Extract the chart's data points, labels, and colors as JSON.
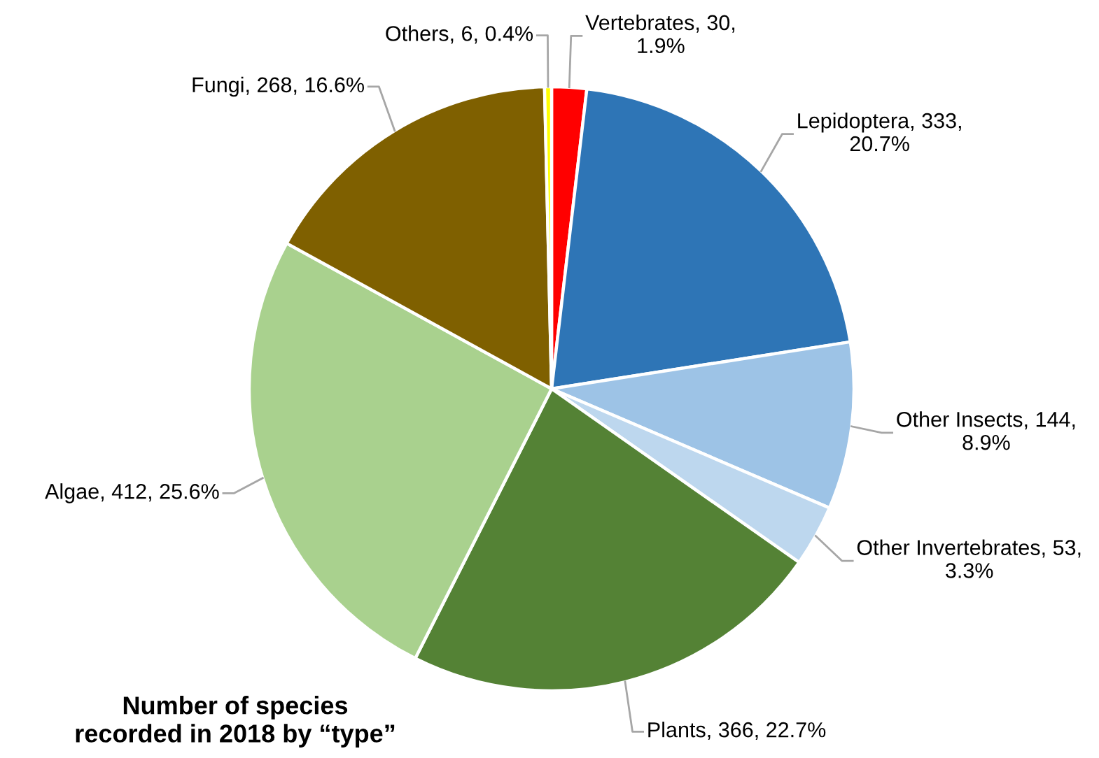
{
  "chart_data": {
    "type": "pie",
    "title": "Number of species\nrecorded in 2018 by “type”",
    "categories": [
      "Vertebrates",
      "Lepidoptera",
      "Other Insects",
      "Other Invertebrates",
      "Plants",
      "Algae",
      "Fungi",
      "Others"
    ],
    "values": [
      30,
      333,
      144,
      53,
      366,
      412,
      268,
      6
    ],
    "colors": [
      "#ff0000",
      "#2e75b6",
      "#9dc3e6",
      "#bdd7ee",
      "#548235",
      "#a9d18e",
      "#7f6000",
      "#ffff00"
    ],
    "value_labels": [
      "30, 1.9%",
      "333, 20.7%",
      "144, 8.9%",
      "53, 3.3%",
      "366, 22.7%",
      "412, 25.6%",
      "268, 16.6%",
      "6, 0.4%"
    ]
  }
}
